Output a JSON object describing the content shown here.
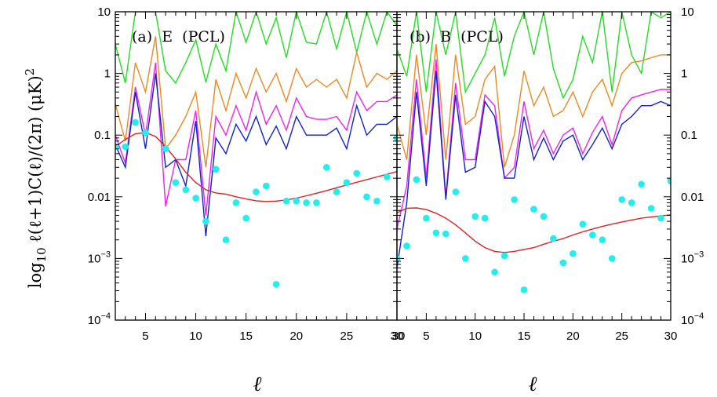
{
  "chart_data": [
    {
      "type": "line",
      "panel_label": "(a)  E  (PCL)",
      "xlabel": "ℓ",
      "ylabel": "log10 ℓ(ℓ+1)C(ℓ)/(2π)  (μK)²",
      "xlim": [
        2,
        30
      ],
      "ylim": [
        0.0001,
        10
      ],
      "yscale": "log",
      "xticks": [
        5,
        10,
        15,
        20,
        25,
        30
      ],
      "yticks": [
        {
          "value": 0.0001,
          "base": "10",
          "exp": "−4"
        },
        {
          "value": 0.001,
          "base": "10",
          "exp": "−3"
        },
        {
          "value": 0.01,
          "label": "0.01"
        },
        {
          "value": 0.1,
          "label": "0.1"
        },
        {
          "value": 1,
          "label": "1"
        },
        {
          "value": 10,
          "label": "10"
        }
      ],
      "series": [
        {
          "color": "#22dd22",
          "x": [
            2,
            3,
            4,
            5,
            6,
            7,
            8,
            9,
            10,
            11,
            12,
            13,
            14,
            15,
            16,
            17,
            18,
            19,
            20,
            21,
            22,
            23,
            24,
            25,
            26,
            27,
            28,
            29,
            30
          ],
          "y": [
            3.0,
            0.7,
            10,
            10,
            10,
            1.1,
            0.7,
            1.5,
            3.5,
            0.72,
            3.0,
            1.1,
            10,
            3.2,
            10,
            3.0,
            8.0,
            1.8,
            10,
            3.2,
            3.0,
            10,
            2.5,
            10,
            2.2,
            10,
            3.0,
            10,
            6.0
          ]
        },
        {
          "color": "#ee8822",
          "x": [
            2,
            3,
            4,
            5,
            6,
            7,
            8,
            9,
            10,
            11,
            12,
            13,
            14,
            15,
            16,
            17,
            18,
            19,
            20,
            21,
            22,
            23,
            24,
            25,
            26,
            27,
            28,
            29,
            30
          ],
          "y": [
            0.32,
            0.08,
            1.5,
            0.5,
            4.0,
            0.06,
            0.1,
            0.2,
            0.5,
            0.03,
            0.8,
            0.25,
            1.0,
            0.4,
            1.2,
            0.5,
            1.0,
            0.35,
            1.2,
            0.6,
            0.8,
            0.6,
            0.8,
            0.4,
            2.2,
            0.6,
            1.0,
            0.8,
            1.1
          ]
        },
        {
          "color": "#ee22ee",
          "x": [
            2,
            3,
            4,
            5,
            6,
            7,
            8,
            9,
            10,
            11,
            12,
            13,
            14,
            15,
            16,
            17,
            18,
            19,
            20,
            21,
            22,
            23,
            24,
            25,
            26,
            27,
            28,
            29,
            30
          ],
          "y": [
            0.1,
            0.035,
            0.6,
            0.1,
            1.5,
            0.007,
            0.04,
            0.04,
            0.25,
            0.005,
            0.2,
            0.1,
            0.3,
            0.12,
            0.5,
            0.15,
            0.3,
            0.12,
            0.4,
            0.2,
            0.18,
            0.18,
            0.2,
            0.12,
            0.5,
            0.25,
            0.35,
            0.35,
            0.45
          ]
        },
        {
          "color": "#1122cc",
          "x": [
            2,
            3,
            4,
            5,
            6,
            7,
            8,
            9,
            10,
            11,
            12,
            13,
            14,
            15,
            16,
            17,
            18,
            19,
            20,
            21,
            22,
            23,
            24,
            25,
            26,
            27,
            28,
            29,
            30
          ],
          "y": [
            0.07,
            0.03,
            0.5,
            0.06,
            1.0,
            0.03,
            0.04,
            0.015,
            0.17,
            0.0023,
            0.09,
            0.05,
            0.15,
            0.08,
            0.2,
            0.07,
            0.14,
            0.06,
            0.2,
            0.1,
            0.1,
            0.1,
            0.13,
            0.06,
            0.3,
            0.1,
            0.15,
            0.15,
            0.2
          ]
        },
        {
          "color": "#dd2222",
          "x": [
            2,
            3,
            4,
            5,
            6,
            7,
            8,
            9,
            10,
            11,
            12,
            13,
            14,
            15,
            16,
            17,
            18,
            19,
            20,
            21,
            22,
            23,
            24,
            25,
            26,
            27,
            28,
            29,
            30
          ],
          "y": [
            0.065,
            0.085,
            0.105,
            0.11,
            0.095,
            0.065,
            0.041,
            0.025,
            0.017,
            0.013,
            0.0115,
            0.011,
            0.01,
            0.0092,
            0.0086,
            0.0084,
            0.0085,
            0.0089,
            0.0095,
            0.0104,
            0.0114,
            0.0126,
            0.014,
            0.0155,
            0.0172,
            0.019,
            0.021,
            0.0232,
            0.0256
          ]
        }
      ],
      "points": {
        "color": "#22eeee",
        "x": [
          2,
          3,
          4,
          5,
          7,
          8,
          9,
          10,
          11,
          12,
          13,
          14,
          15,
          16,
          17,
          18,
          19,
          20,
          21,
          22,
          23,
          24,
          25,
          26,
          27,
          28,
          29,
          30
        ],
        "y": [
          0.065,
          0.065,
          0.16,
          0.11,
          0.06,
          0.017,
          0.013,
          0.0095,
          0.004,
          0.028,
          0.002,
          0.008,
          0.0045,
          0.012,
          0.015,
          0.00038,
          0.0085,
          0.0085,
          0.008,
          0.008,
          0.03,
          0.012,
          0.017,
          0.024,
          0.01,
          0.0085,
          0.021,
          0.09
        ]
      }
    },
    {
      "type": "line",
      "panel_label": "(b)  B  (PCL)",
      "xlabel": "ℓ",
      "xlim": [
        2,
        30
      ],
      "ylim": [
        0.0001,
        10
      ],
      "yscale": "log",
      "xticks": [
        5,
        10,
        15,
        20,
        25,
        30
      ],
      "first_tick": "30",
      "series": [
        {
          "color": "#22dd22",
          "x": [
            2,
            3,
            4,
            5,
            6,
            7,
            8,
            9,
            10,
            11,
            12,
            13,
            14,
            15,
            16,
            17,
            18,
            19,
            20,
            21,
            22,
            23,
            24,
            25,
            26,
            27,
            28,
            29,
            30
          ],
          "y": [
            2.5,
            0.9,
            10,
            0.5,
            10,
            2.0,
            10,
            0.5,
            1.0,
            2.0,
            8.0,
            0.9,
            4.0,
            10,
            2.0,
            10,
            1.2,
            0.4,
            0.8,
            4.0,
            1.5,
            10,
            0.5,
            10,
            2.0,
            1.0,
            10,
            8.0,
            10
          ]
        },
        {
          "color": "#ee8822",
          "x": [
            2,
            3,
            4,
            5,
            6,
            7,
            8,
            9,
            10,
            11,
            12,
            13,
            14,
            15,
            16,
            17,
            18,
            19,
            20,
            21,
            22,
            23,
            24,
            25,
            26,
            27,
            28,
            29,
            30
          ],
          "y": [
            0.15,
            0.04,
            2.0,
            0.1,
            3.0,
            0.04,
            2.0,
            0.15,
            0.2,
            0.8,
            1.3,
            0.03,
            0.1,
            1.1,
            0.3,
            0.6,
            0.2,
            0.25,
            0.5,
            0.2,
            0.5,
            0.8,
            0.3,
            1.0,
            1.5,
            1.6,
            1.8,
            2.0,
            2.0
          ]
        },
        {
          "color": "#ee22ee",
          "x": [
            2,
            3,
            4,
            5,
            6,
            7,
            8,
            9,
            10,
            11,
            12,
            13,
            14,
            15,
            16,
            17,
            18,
            19,
            20,
            21,
            22,
            23,
            24,
            25,
            26,
            27,
            28,
            29,
            30
          ],
          "y": [
            0.003,
            0.015,
            0.8,
            0.02,
            1.7,
            0.01,
            0.7,
            0.04,
            0.04,
            0.45,
            0.3,
            0.02,
            0.03,
            0.35,
            0.06,
            0.12,
            0.05,
            0.1,
            0.13,
            0.05,
            0.11,
            0.2,
            0.07,
            0.25,
            0.4,
            0.45,
            0.5,
            0.55,
            0.55
          ]
        },
        {
          "color": "#1122cc",
          "x": [
            2,
            3,
            4,
            5,
            6,
            7,
            8,
            9,
            10,
            11,
            12,
            13,
            14,
            15,
            16,
            17,
            18,
            19,
            20,
            21,
            22,
            23,
            24,
            25,
            26,
            27,
            28,
            29,
            30
          ],
          "y": [
            0.0007,
            0.008,
            0.5,
            0.015,
            1.1,
            0.009,
            0.45,
            0.025,
            0.03,
            0.35,
            0.2,
            0.02,
            0.02,
            0.2,
            0.04,
            0.09,
            0.04,
            0.08,
            0.1,
            0.04,
            0.07,
            0.13,
            0.06,
            0.15,
            0.2,
            0.3,
            0.3,
            0.35,
            0.3
          ]
        },
        {
          "color": "#dd2222",
          "x": [
            2,
            3,
            4,
            5,
            6,
            7,
            8,
            9,
            10,
            11,
            12,
            13,
            14,
            15,
            16,
            17,
            18,
            19,
            20,
            21,
            22,
            23,
            24,
            25,
            26,
            27,
            28,
            29,
            30
          ],
          "y": [
            0.0055,
            0.0065,
            0.0066,
            0.0062,
            0.0054,
            0.0045,
            0.0035,
            0.0026,
            0.0019,
            0.0015,
            0.0013,
            0.00125,
            0.0013,
            0.0014,
            0.0015,
            0.0017,
            0.0019,
            0.0021,
            0.0024,
            0.0027,
            0.003,
            0.0033,
            0.0036,
            0.0039,
            0.0042,
            0.0045,
            0.0047,
            0.0049,
            0.0051
          ]
        }
      ],
      "points": {
        "color": "#22eeee",
        "x": [
          2,
          3,
          4,
          5,
          6,
          7,
          8,
          9,
          10,
          11,
          12,
          13,
          14,
          15,
          16,
          17,
          18,
          19,
          20,
          21,
          22,
          23,
          24,
          25,
          26,
          27,
          28,
          29,
          30
        ],
        "y": [
          0.001,
          0.0016,
          0.019,
          0.0045,
          0.0026,
          0.0025,
          0.012,
          0.001,
          0.0048,
          0.0045,
          0.0006,
          0.0011,
          0.009,
          0.00031,
          0.0063,
          0.0048,
          0.0021,
          0.00085,
          0.0012,
          0.0036,
          0.0024,
          0.002,
          0.001,
          0.009,
          0.008,
          0.016,
          0.0065,
          0.0045,
          0.018
        ]
      }
    }
  ],
  "right_axis_ticks": [
    {
      "value": 0.0001,
      "base": "10",
      "exp": "−4"
    },
    {
      "value": 0.001,
      "base": "10",
      "exp": "−3"
    },
    {
      "value": 0.01,
      "label": "0.01"
    },
    {
      "value": 0.1,
      "label": "0.1"
    },
    {
      "value": 1,
      "label": "1"
    },
    {
      "value": 10,
      "label": "10"
    }
  ]
}
